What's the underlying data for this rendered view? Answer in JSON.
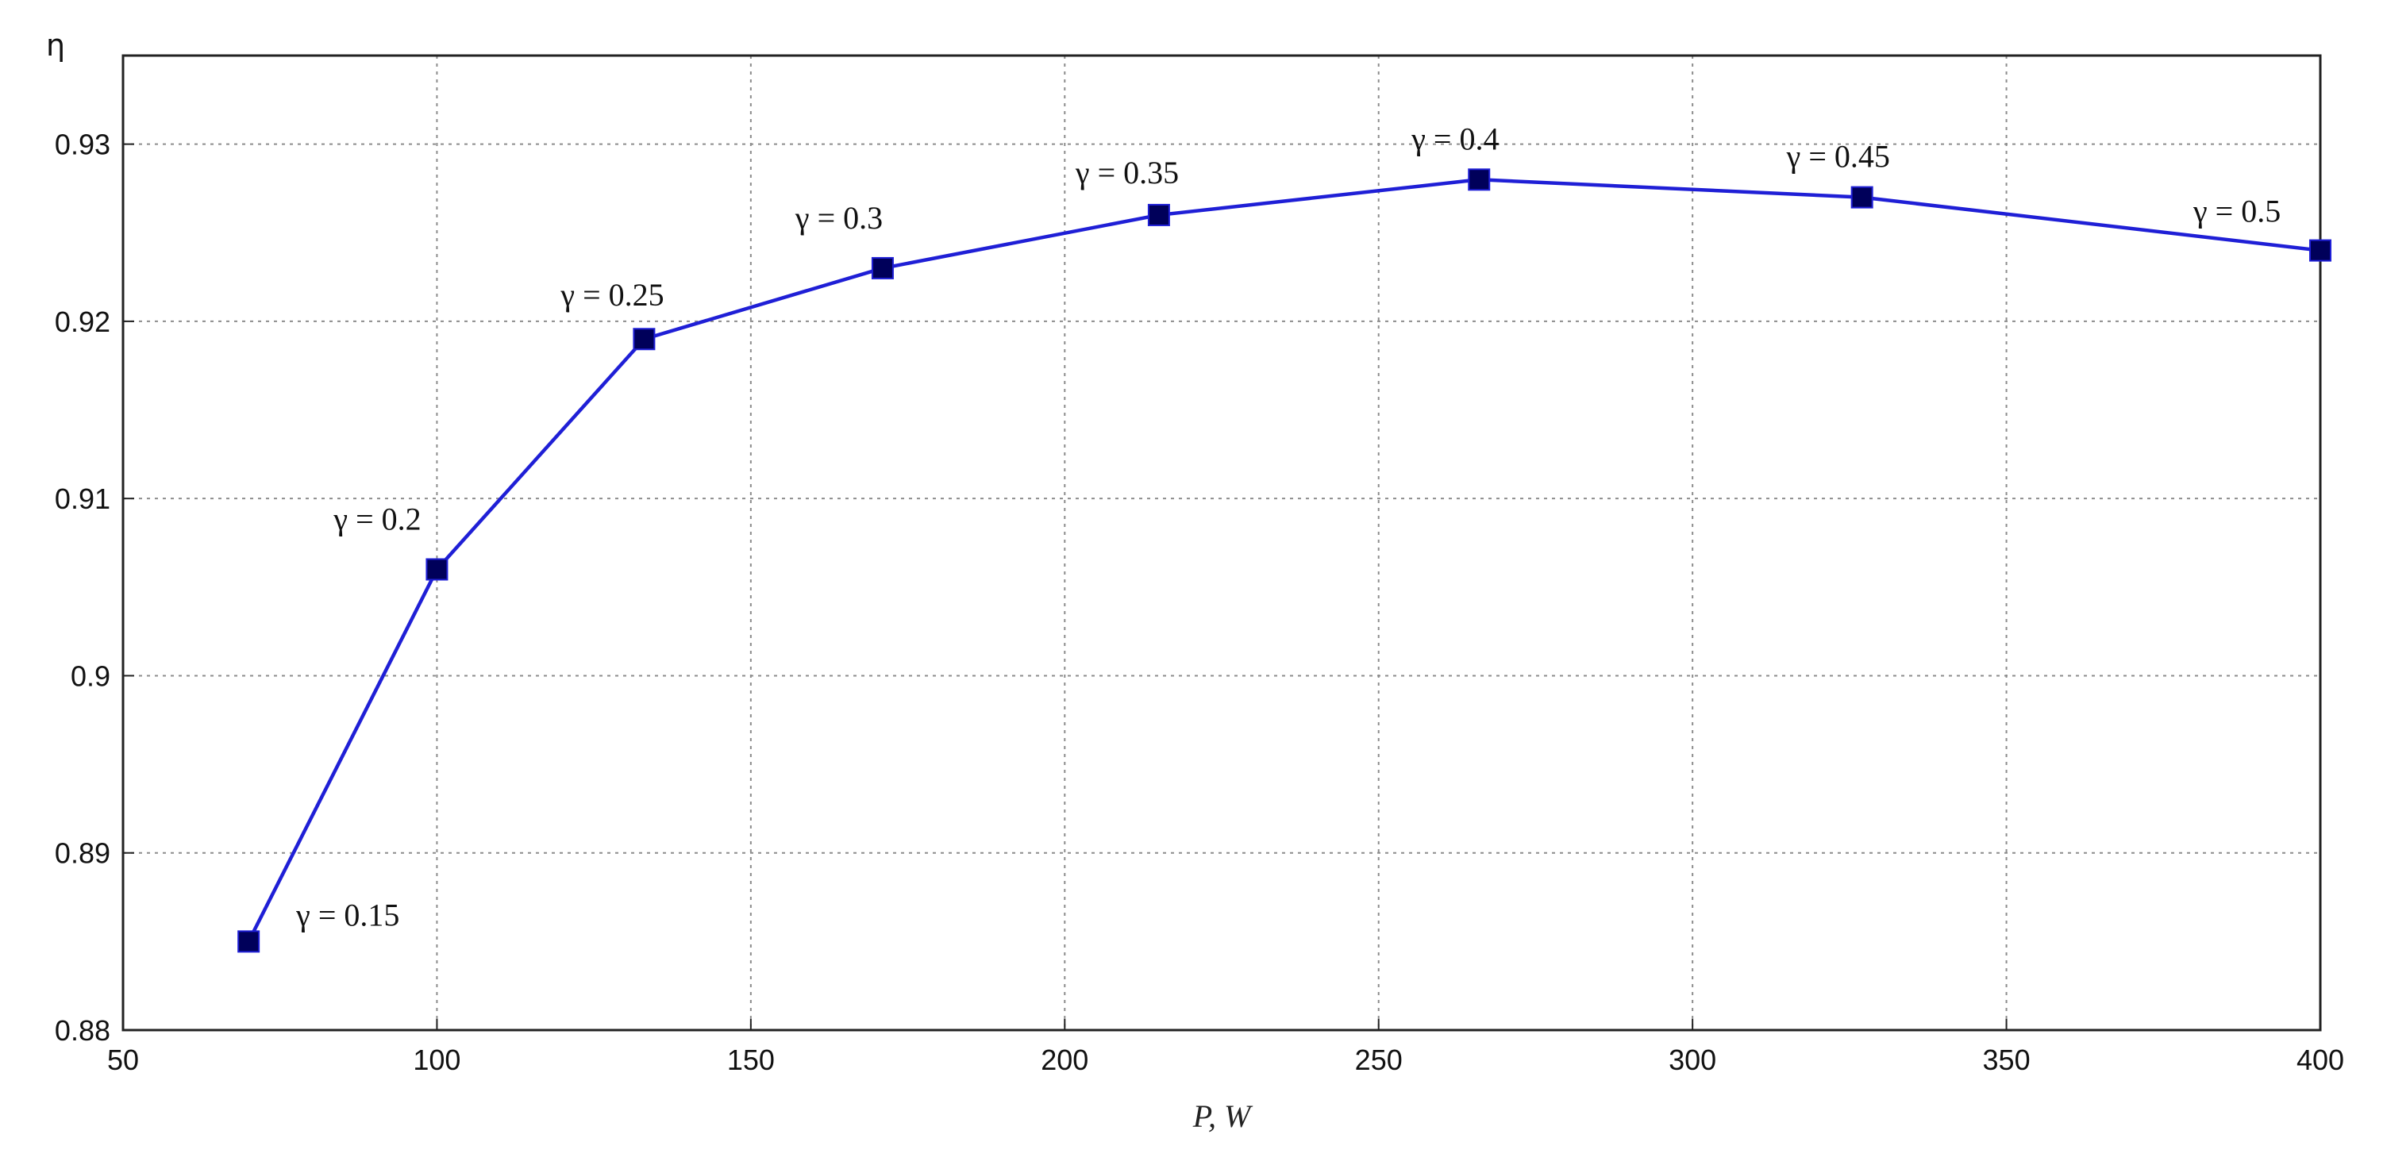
{
  "chart_data": {
    "type": "line",
    "title": "",
    "xlabel": "P, W",
    "ylabel": "η",
    "xlim": [
      50,
      400
    ],
    "ylim": [
      0.88,
      0.935
    ],
    "x_ticks": [
      50,
      100,
      150,
      200,
      250,
      300,
      350,
      400
    ],
    "x_tick_labels": [
      "50",
      "100",
      "150",
      "200",
      "250",
      "300",
      "350",
      "400"
    ],
    "y_ticks": [
      0.88,
      0.89,
      0.9,
      0.91,
      0.92,
      0.93
    ],
    "y_tick_labels": [
      "0.88",
      "0.89",
      "0.9",
      "0.91",
      "0.92",
      "0.93"
    ],
    "grid": true,
    "series": [
      {
        "color": "#1f1fd6",
        "marker": "square",
        "marker_color": "#00005a",
        "points": [
          {
            "x": 70,
            "y": 0.885,
            "label": "γ = 0.15"
          },
          {
            "x": 100,
            "y": 0.906,
            "label": "γ = 0.2"
          },
          {
            "x": 133,
            "y": 0.919,
            "label": "γ = 0.25"
          },
          {
            "x": 171,
            "y": 0.923,
            "label": "γ = 0.3"
          },
          {
            "x": 215,
            "y": 0.926,
            "label": "γ = 0.35"
          },
          {
            "x": 266,
            "y": 0.928,
            "label": "γ = 0.4"
          },
          {
            "x": 327,
            "y": 0.927,
            "label": "γ = 0.45"
          },
          {
            "x": 400,
            "y": 0.924,
            "label": "γ = 0.5"
          }
        ]
      }
    ]
  }
}
